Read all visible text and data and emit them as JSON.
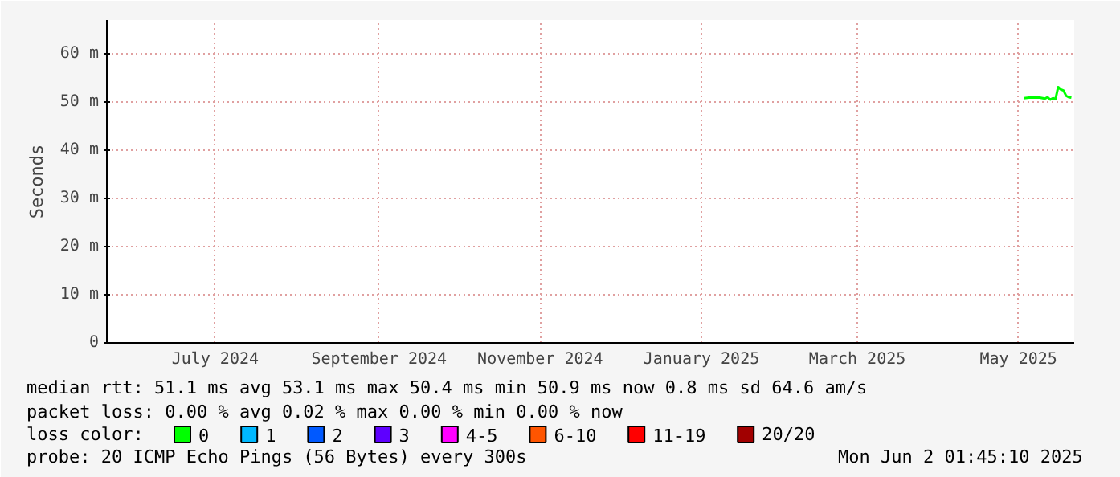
{
  "chart_data": {
    "type": "line",
    "ylabel": "Seconds",
    "x": [
      "2025-05-14",
      "2025-05-16",
      "2025-05-18",
      "2025-05-20",
      "2025-05-22",
      "2025-05-23",
      "2025-05-24",
      "2025-05-25",
      "2025-05-26",
      "2025-05-27",
      "2025-05-28",
      "2025-05-29",
      "2025-05-30",
      "2025-05-31",
      "2025-06-01"
    ],
    "series": [
      {
        "name": "0",
        "color": "#00ff00",
        "values": [
          50.8,
          50.9,
          50.9,
          50.9,
          50.7,
          51.0,
          50.5,
          50.8,
          50.6,
          53.1,
          52.6,
          52.4,
          51.3,
          51.0,
          50.9
        ]
      },
      {
        "name": "1",
        "color": "#00b8ff",
        "values": [
          null,
          null,
          null,
          null,
          null,
          null,
          null,
          null,
          null,
          null,
          null,
          null,
          null,
          null,
          null
        ]
      },
      {
        "name": "2",
        "color": "#0059ff",
        "values": [
          null,
          null,
          null,
          null,
          null,
          null,
          null,
          null,
          null,
          null,
          null,
          null,
          null,
          null,
          null
        ]
      },
      {
        "name": "3",
        "color": "#5e00ff",
        "values": [
          null,
          null,
          null,
          null,
          null,
          null,
          null,
          null,
          null,
          null,
          null,
          null,
          null,
          null,
          null
        ]
      },
      {
        "name": "4-5",
        "color": "#ff00ff",
        "values": [
          null,
          null,
          null,
          null,
          null,
          null,
          null,
          null,
          null,
          null,
          null,
          null,
          null,
          null,
          null
        ]
      },
      {
        "name": "6-10",
        "color": "#ff5500",
        "values": [
          null,
          null,
          null,
          null,
          null,
          null,
          null,
          null,
          null,
          null,
          null,
          null,
          null,
          null,
          null
        ]
      },
      {
        "name": "11-19",
        "color": "#ff0000",
        "values": [
          null,
          null,
          null,
          null,
          null,
          null,
          null,
          null,
          null,
          null,
          null,
          null,
          null,
          null,
          null
        ]
      },
      {
        "name": "20/20",
        "color": "#a10000",
        "values": [
          null,
          null,
          null,
          null,
          null,
          null,
          null,
          null,
          null,
          null,
          null,
          null,
          null,
          null,
          null
        ]
      }
    ],
    "legend_title": "loss color:",
    "legend": "bottom",
    "xlim": [
      "2024-06-01",
      "2025-06-02T01:45"
    ],
    "xticks": [
      {
        "value": "2024-07-12",
        "label": "July 2024"
      },
      {
        "value": "2024-09-12",
        "label": "September 2024"
      },
      {
        "value": "2024-11-12",
        "label": "November 2024"
      },
      {
        "value": "2025-01-12",
        "label": "January 2025"
      },
      {
        "value": "2025-03-12",
        "label": "March 2025"
      },
      {
        "value": "2025-05-12",
        "label": "May 2025"
      }
    ],
    "ylim": [
      0,
      67
    ],
    "yticks": [
      0,
      {
        "value": 10,
        "label": "10 m"
      },
      {
        "value": 20,
        "label": "20 m"
      },
      {
        "value": 30,
        "label": "30 m"
      },
      {
        "value": 40,
        "label": "40 m"
      },
      {
        "value": 50,
        "label": "50 m"
      },
      {
        "value": 60,
        "label": "60 m"
      }
    ],
    "grid": true,
    "marker": "none",
    "line_style": "solid",
    "annotations": [
      "median rtt:  51.1 ms avg  53.1 ms max  50.4 ms min  50.9 ms now  0.8 ms sd  64.6   am/s",
      "packet loss: 0.00 % avg  0.02 % max  0.00 % min  0.00 % now",
      "probe:       20 ICMP Echo Pings (56 Bytes) every 300s",
      "Mon Jun  2 01:45:10 2025"
    ]
  }
}
